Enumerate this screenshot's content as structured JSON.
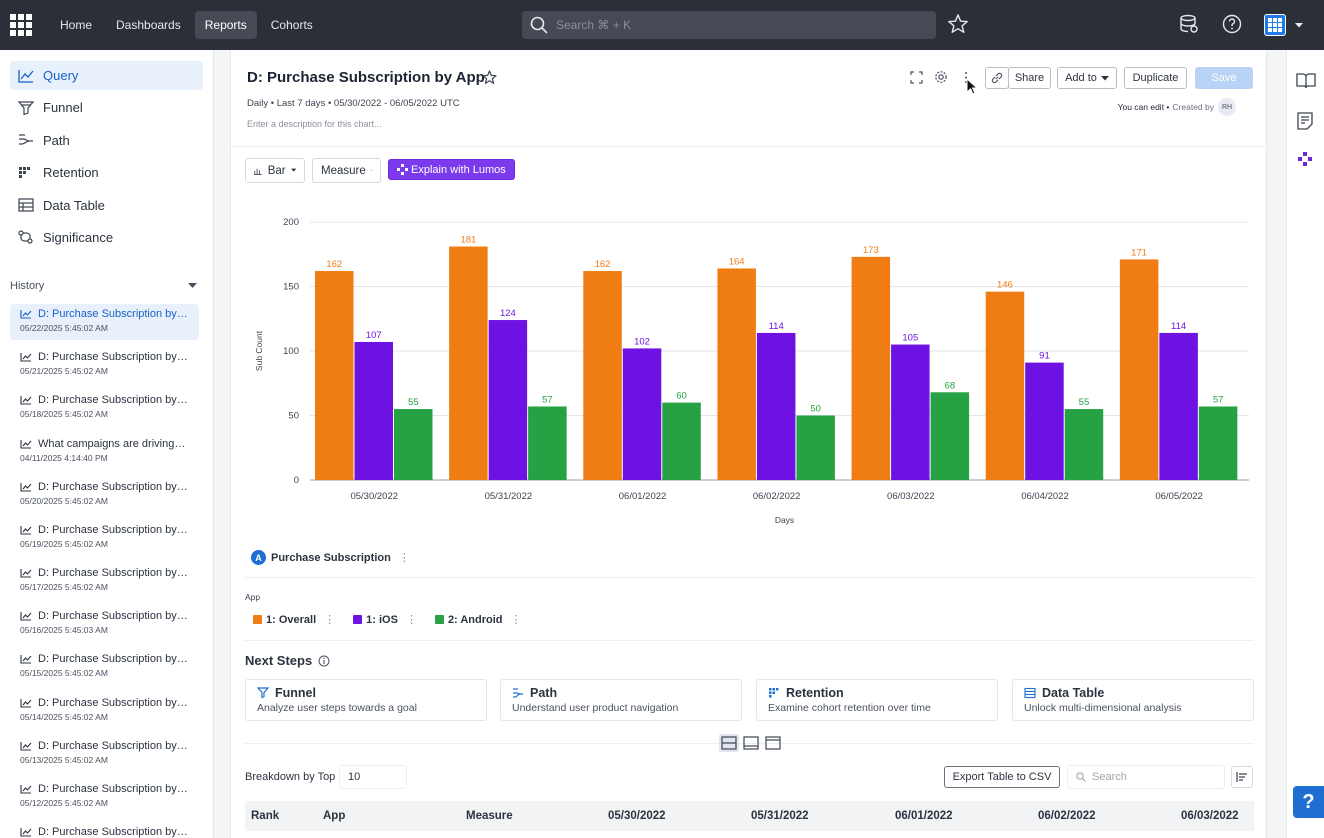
{
  "topbar": {
    "nav": [
      "Home",
      "Dashboards",
      "Reports",
      "Cohorts"
    ],
    "active_nav": "Reports",
    "search_placeholder": "Search ⌘ + K"
  },
  "sidebar": {
    "items": [
      {
        "label": "Query",
        "icon": "line-chart-icon"
      },
      {
        "label": "Funnel",
        "icon": "funnel-icon"
      },
      {
        "label": "Path",
        "icon": "path-icon"
      },
      {
        "label": "Retention",
        "icon": "retention-icon"
      },
      {
        "label": "Data Table",
        "icon": "data-table-icon"
      },
      {
        "label": "Significance",
        "icon": "significance-icon"
      }
    ],
    "history_label": "History",
    "history": [
      {
        "title": "D: Purchase Subscription by App",
        "date": "05/22/2025 5:45:02 AM"
      },
      {
        "title": "D: Purchase Subscription by App",
        "date": "05/21/2025 5:45:02 AM"
      },
      {
        "title": "D: Purchase Subscription by App",
        "date": "05/18/2025 5:45:02 AM"
      },
      {
        "title": "What campaigns are driving signups",
        "date": "04/11/2025 4:14:40 PM"
      },
      {
        "title": "D: Purchase Subscription by App",
        "date": "05/20/2025 5:45:02 AM"
      },
      {
        "title": "D: Purchase Subscription by App",
        "date": "05/19/2025 5:45:02 AM"
      },
      {
        "title": "D: Purchase Subscription by App",
        "date": "05/17/2025 5:45:02 AM"
      },
      {
        "title": "D: Purchase Subscription by App",
        "date": "05/16/2025 5:45:03 AM"
      },
      {
        "title": "D: Purchase Subscription by App",
        "date": "05/15/2025 5:45:02 AM"
      },
      {
        "title": "D: Purchase Subscription by App",
        "date": "05/14/2025 5:45:02 AM"
      },
      {
        "title": "D: Purchase Subscription by App",
        "date": "05/13/2025 5:45:02 AM"
      },
      {
        "title": "D: Purchase Subscription by App",
        "date": "05/12/2025 5:45:02 AM"
      },
      {
        "title": "D: Purchase Subscription by App",
        "date": ""
      }
    ]
  },
  "report": {
    "title": "D: Purchase Subscription by App",
    "subtitle": "Daily • Last 7 days • 05/30/2022 - 06/05/2022 UTC",
    "description_placeholder": "Enter a description for this chart...",
    "share": "Share",
    "add_to": "Add to",
    "duplicate": "Duplicate",
    "save": "Save",
    "edit_note": "You can edit •",
    "created_by": "Created by",
    "creator_initials": "RH",
    "chart_type_btn": "Bar",
    "measure_btn": "Measure",
    "lumos_btn": "Explain with Lumos"
  },
  "chart_data": {
    "type": "bar",
    "categories": [
      "05/30/2022",
      "05/31/2022",
      "06/01/2022",
      "06/02/2022",
      "06/03/2022",
      "06/04/2022",
      "06/05/2022"
    ],
    "series": [
      {
        "name": "1: Overall",
        "color": "#f07d14",
        "values": [
          162,
          181,
          162,
          164,
          173,
          146,
          171
        ]
      },
      {
        "name": "1: iOS",
        "color": "#6d12e3",
        "values": [
          107,
          124,
          102,
          114,
          105,
          91,
          114
        ]
      },
      {
        "name": "2: Android",
        "color": "#26a143",
        "values": [
          55,
          57,
          60,
          50,
          68,
          55,
          57
        ]
      }
    ],
    "xlabel": "Days",
    "ylabel": "Sub Count",
    "ylim": [
      0,
      200
    ],
    "yticks": [
      0,
      50,
      100,
      150,
      200
    ],
    "grid": true
  },
  "metric": {
    "badge": "A",
    "label": "Purchase Subscription"
  },
  "app_label": "App",
  "next_steps": {
    "title": "Next Steps",
    "cards": [
      {
        "title": "Funnel",
        "sub": "Analyze user steps towards a goal"
      },
      {
        "title": "Path",
        "sub": "Understand user product navigation"
      },
      {
        "title": "Retention",
        "sub": "Examine cohort retention over time"
      },
      {
        "title": "Data Table",
        "sub": "Unlock multi-dimensional analysis"
      }
    ]
  },
  "table": {
    "breakdown_label": "Breakdown by Top",
    "breakdown_value": "10",
    "export": "Export Table to CSV",
    "search_placeholder": "Search",
    "headers": [
      "Rank",
      "App",
      "Measure",
      "05/30/2022",
      "05/31/2022",
      "06/01/2022",
      "06/02/2022",
      "06/03/2022"
    ]
  },
  "help": "?"
}
